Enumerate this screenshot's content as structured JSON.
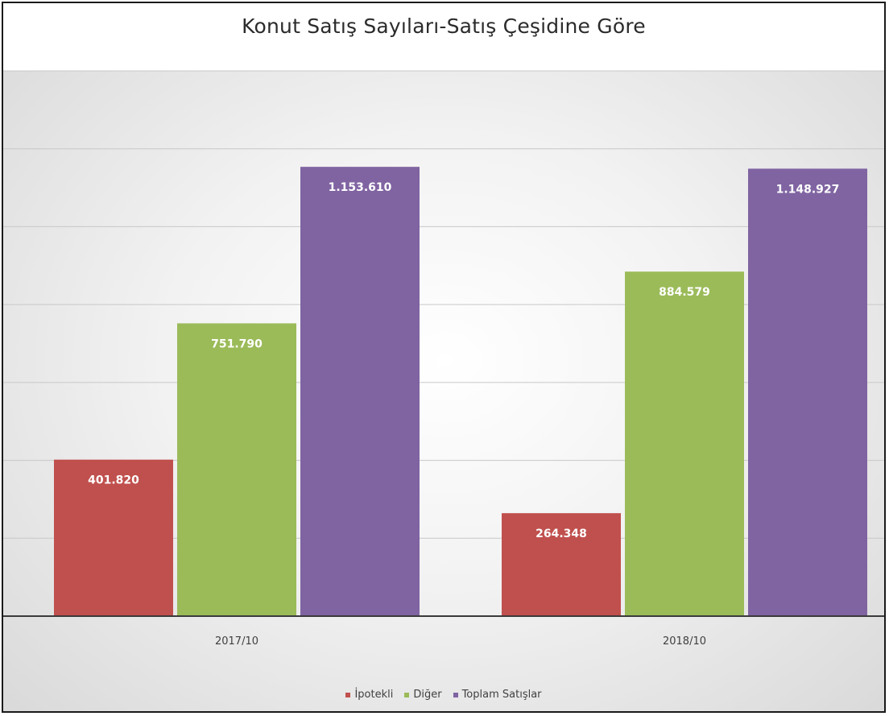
{
  "chart_data": {
    "type": "bar",
    "title": "Konut Satış Sayıları-Satış Çeşidine Göre",
    "categories": [
      "2017/10",
      "2018/10"
    ],
    "series": [
      {
        "name": "İpotekli",
        "values": [
          401820,
          264348
        ],
        "labels": [
          "401.820",
          "264.348"
        ],
        "color": "#c0504d"
      },
      {
        "name": "Diğer",
        "values": [
          751790,
          884579
        ],
        "labels": [
          "751.790",
          "884.579"
        ],
        "color": "#9bbb59"
      },
      {
        "name": "Toplam Satışlar",
        "values": [
          1153610,
          1148927
        ],
        "labels": [
          "1.153.610",
          "1.148.927"
        ],
        "color": "#8064a2"
      }
    ],
    "ylim": [
      0,
      1400000
    ],
    "grid": true,
    "legend_position": "bottom"
  }
}
